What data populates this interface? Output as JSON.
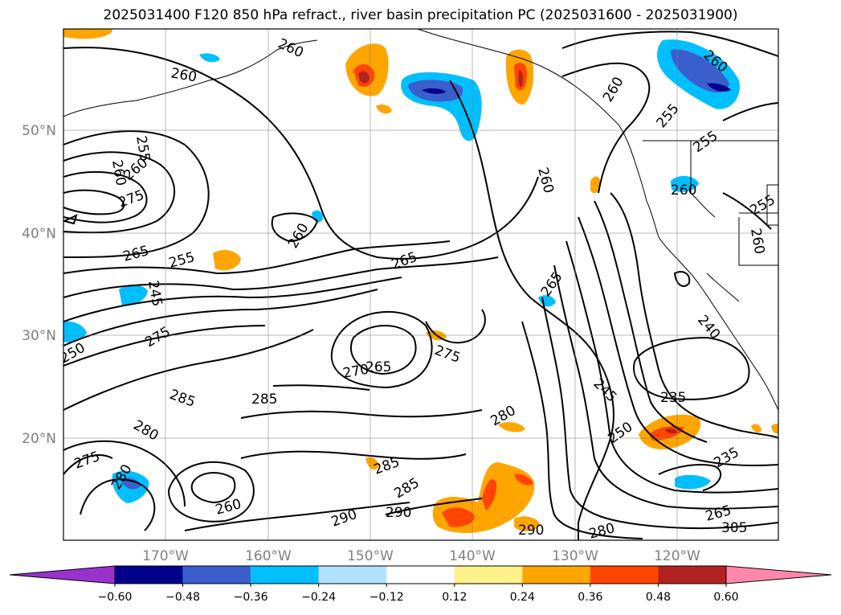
{
  "title": "2025031400 F120 850 hPa refract., river basin precipitation PC (2025031600 - 2025031900)",
  "lat_labels": [
    "50°N",
    "40°N",
    "30°N",
    "20°N"
  ],
  "lon_labels": [
    "170°W",
    "160°W",
    "150°W",
    "140°W",
    "130°W",
    "120°W"
  ],
  "contour_labels": [
    "260",
    "260",
    "260",
    "260",
    "260",
    "255",
    "255",
    "260",
    "260",
    "265",
    "265",
    "270",
    "265",
    "265",
    "245",
    "275",
    "250",
    "275",
    "285",
    "285",
    "280",
    "275",
    "280",
    "280",
    "285",
    "285",
    "290",
    "290",
    "290",
    "280",
    "250",
    "245",
    "240",
    "235",
    "235",
    "265",
    "305",
    "255",
    "255",
    "255",
    "260",
    "260",
    "260",
    "260",
    "275"
  ],
  "colorbar": {
    "ticks": [
      "−0.60",
      "−0.48",
      "−0.36",
      "−0.24",
      "−0.12",
      "0.12",
      "0.24",
      "0.36",
      "0.48",
      "0.60"
    ],
    "colors": [
      "#9932cc",
      "#00008b",
      "#3a5fcd",
      "#00bfff",
      "#b0e2ff",
      "#ffffff",
      "#fff08a",
      "#ffa500",
      "#ff4500",
      "#b22222",
      "#ff88aa"
    ]
  }
}
